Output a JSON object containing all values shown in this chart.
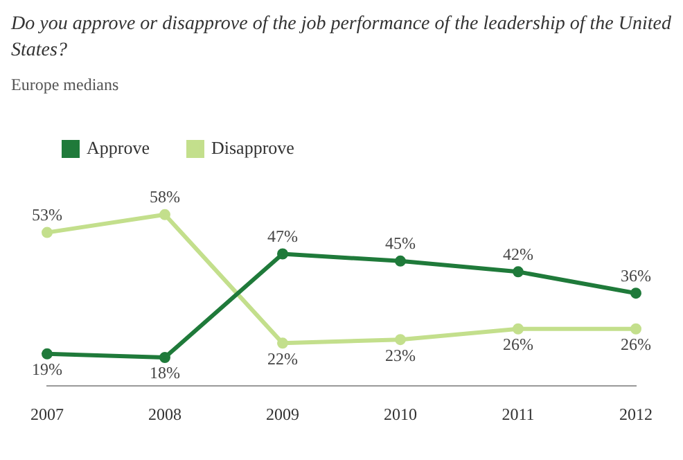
{
  "chart_data": {
    "type": "line",
    "title": "Do you approve or disapprove of the job performance of the leadership of the United States?",
    "subtitle": "Europe medians",
    "categories": [
      "2007",
      "2008",
      "2009",
      "2010",
      "2011",
      "2012"
    ],
    "series": [
      {
        "name": "Approve",
        "color": "#1f7a3a",
        "values": [
          19,
          18,
          47,
          45,
          42,
          36
        ],
        "value_labels": [
          "19%",
          "18%",
          "47%",
          "45%",
          "42%",
          "36%"
        ]
      },
      {
        "name": "Disapprove",
        "color": "#c3df8c",
        "values": [
          53,
          58,
          22,
          23,
          26,
          26
        ],
        "value_labels": [
          "53%",
          "58%",
          "22%",
          "23%",
          "26%",
          "26%"
        ]
      }
    ],
    "legend": "top left",
    "marker": "circle",
    "grid": false
  }
}
